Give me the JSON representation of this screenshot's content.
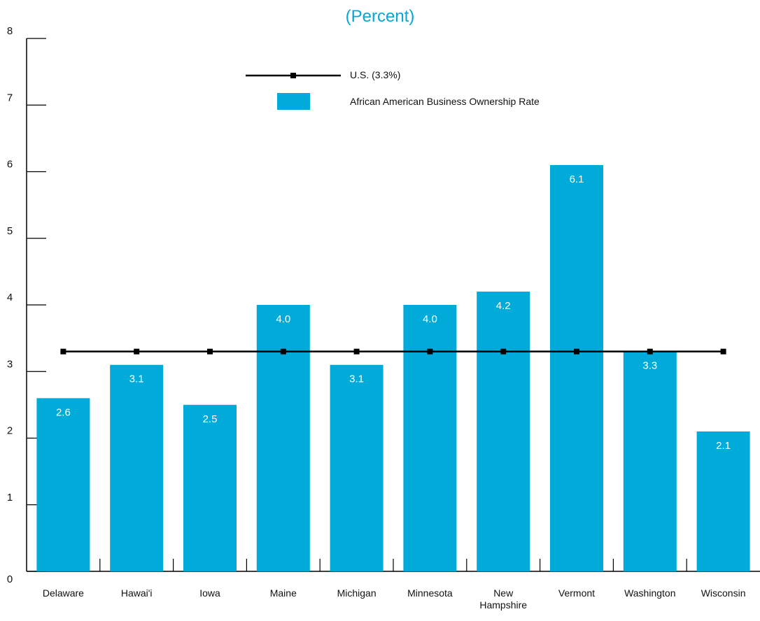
{
  "chart_data": {
    "type": "bar",
    "subtitle": "(Percent)",
    "categories": [
      "Delaware",
      "Hawai'i",
      "Iowa",
      "Maine",
      "Michigan",
      "Minnesota",
      "New Hampshire",
      "Vermont",
      "Washington",
      "Wisconsin"
    ],
    "category_labels": [
      [
        "Delaware"
      ],
      [
        "Hawai'i"
      ],
      [
        "Iowa"
      ],
      [
        "Maine"
      ],
      [
        "Michigan"
      ],
      [
        "Minnesota"
      ],
      [
        "New",
        "Hampshire"
      ],
      [
        "Vermont"
      ],
      [
        "Washington"
      ],
      [
        "Wisconsin"
      ]
    ],
    "series": [
      {
        "name": "African American Business Ownership Rate",
        "values": [
          2.6,
          3.1,
          2.5,
          4.0,
          3.1,
          4.0,
          4.2,
          6.1,
          3.3,
          2.1
        ],
        "value_labels": [
          "2.6",
          "3.1",
          "2.5",
          "4.0",
          "3.1",
          "4.0",
          "4.2",
          "6.1",
          "3.3",
          "2.1"
        ],
        "color": "#00abda"
      }
    ],
    "reference_line": {
      "name": "U.S. (3.3%)",
      "value": 3.3,
      "color": "#000000"
    },
    "ylim": [
      0,
      8
    ],
    "yticks": [
      0,
      1,
      2,
      3,
      4,
      5,
      6,
      7,
      8
    ],
    "grid": false,
    "legend_position": "top-center"
  }
}
